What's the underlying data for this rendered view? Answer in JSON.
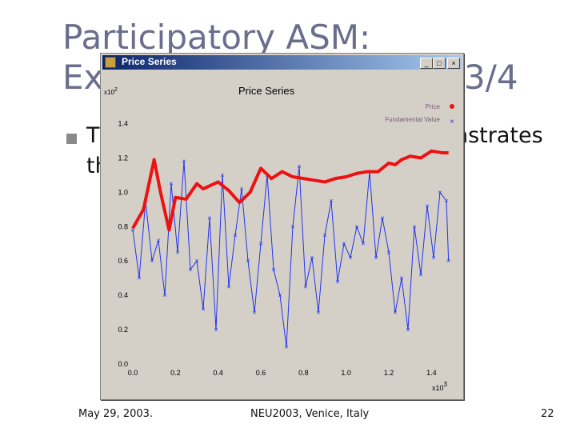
{
  "slide": {
    "title_line1": "Participatory ASM:",
    "title_line2": "Ex",
    "title_tail": "3/4",
    "bullet_start": "T",
    "bullet_end": "nstrates",
    "bullet_line2": "th"
  },
  "window": {
    "title": "Price Series",
    "btn_min": "_",
    "btn_max": "□",
    "btn_close": "×"
  },
  "footer": {
    "date": "May 29, 2003.",
    "venue": "NEU2003, Venice, Italy",
    "page": "22"
  },
  "chart_data": {
    "type": "line",
    "title": "Price Series",
    "y_multiplier": "x10",
    "y_multiplier_exp": "2",
    "x_multiplier": "x10",
    "x_multiplier_exp": "3",
    "xlim": [
      0,
      1500
    ],
    "ylim": [
      0,
      150
    ],
    "x_ticks": [
      "0.0",
      "0.2",
      "0.4",
      "0.6",
      "0.8",
      "1.0",
      "1.2",
      "1.4"
    ],
    "y_ticks": [
      "0.0",
      "0.2",
      "0.4",
      "0.6",
      "0.8",
      "1.0",
      "1.2",
      "1.4"
    ],
    "legend_position": "top-right",
    "colors": {
      "price": "#ee1111",
      "fundamental": "#2233ee"
    },
    "series": [
      {
        "name": "Price",
        "x": [
          0,
          50,
          100,
          130,
          170,
          200,
          250,
          300,
          330,
          400,
          450,
          500,
          550,
          600,
          650,
          700,
          750,
          800,
          850,
          900,
          950,
          1000,
          1050,
          1100,
          1150,
          1200,
          1230,
          1260,
          1300,
          1350,
          1400,
          1450,
          1480
        ],
        "values": [
          79,
          90,
          119,
          100,
          78,
          97,
          96,
          105,
          102,
          106,
          101,
          94,
          100,
          114,
          108,
          112,
          109,
          108,
          107,
          106,
          108,
          109,
          111,
          112,
          112,
          117,
          116,
          119,
          121,
          120,
          124,
          123,
          123
        ]
      },
      {
        "name": "Fundamental Value",
        "x": [
          0,
          30,
          60,
          90,
          120,
          150,
          180,
          210,
          240,
          270,
          300,
          330,
          360,
          390,
          420,
          450,
          480,
          510,
          540,
          570,
          600,
          630,
          660,
          690,
          720,
          750,
          780,
          810,
          840,
          870,
          900,
          930,
          960,
          990,
          1020,
          1050,
          1080,
          1110,
          1140,
          1170,
          1200,
          1230,
          1260,
          1290,
          1320,
          1350,
          1380,
          1410,
          1440,
          1470,
          1480
        ],
        "values": [
          78,
          50,
          95,
          60,
          72,
          40,
          105,
          65,
          118,
          55,
          60,
          32,
          85,
          20,
          110,
          45,
          75,
          102,
          60,
          30,
          70,
          110,
          55,
          40,
          10,
          80,
          115,
          45,
          62,
          30,
          75,
          95,
          48,
          70,
          62,
          80,
          70,
          112,
          62,
          85,
          65,
          30,
          50,
          20,
          80,
          52,
          92,
          62,
          100,
          95,
          60
        ]
      }
    ]
  }
}
